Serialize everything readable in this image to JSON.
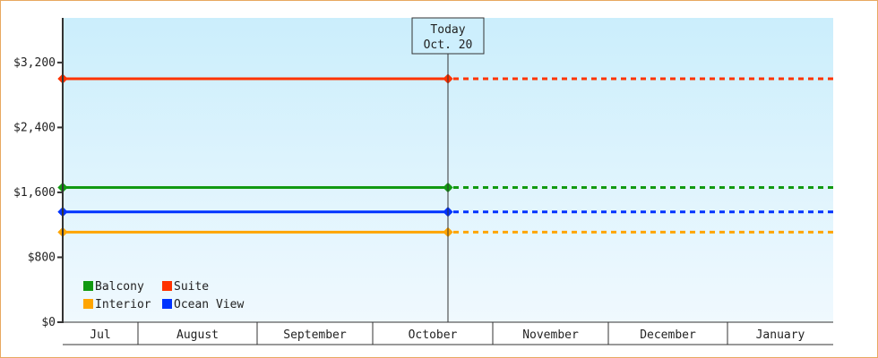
{
  "chart_data": {
    "type": "line",
    "title": "",
    "xlabel": "",
    "ylabel": "",
    "ylim": [
      0,
      3750
    ],
    "y_ticks": [
      0,
      800,
      1600,
      2400,
      3200
    ],
    "y_tick_labels": [
      "$0",
      "$800",
      "$1,600",
      "$2,400",
      "$3,200"
    ],
    "x_tick_labels": [
      "Jul",
      "August",
      "September",
      "October",
      "November",
      "December",
      "January"
    ],
    "today_marker": {
      "line1": "Today",
      "line2": "Oct. 20"
    },
    "grid": false,
    "legend_position": "bottom-left",
    "series": [
      {
        "name": "Balcony",
        "color": "#119911",
        "value": 1660,
        "projection": "dashed"
      },
      {
        "name": "Suite",
        "color": "#ff3300",
        "value": 3000,
        "projection": "dashed"
      },
      {
        "name": "Interior",
        "color": "#ffa500",
        "value": 1110,
        "projection": "dashed"
      },
      {
        "name": "Ocean View",
        "color": "#0033ff",
        "value": 1360,
        "projection": "dashed"
      }
    ]
  }
}
